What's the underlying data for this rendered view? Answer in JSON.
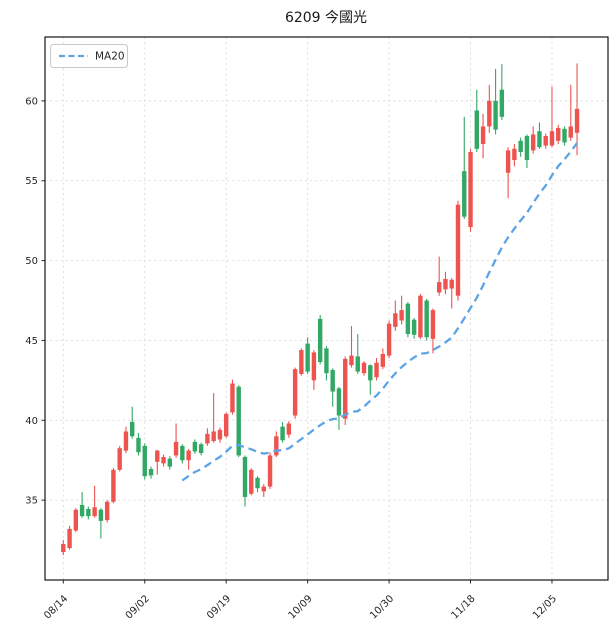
{
  "title": "6209 今國光",
  "legend": {
    "ma20_label": "MA20"
  },
  "colors": {
    "up": "#ef5350",
    "down": "#32a865",
    "ma20": "#5ca4e6",
    "grid": "#d9d9d9",
    "axis": "#000000",
    "text": "#262626",
    "background": "#ffffff"
  },
  "chart_data": {
    "type": "candlestick",
    "title": "6209 今國光",
    "convention": "red=up(close>=open), green=down(close<open)",
    "x_tick_labels": [
      "08/14",
      "09/02",
      "09/19",
      "10/09",
      "10/30",
      "11/18",
      "12/05"
    ],
    "x_tick_indices": [
      0,
      13,
      26,
      39,
      52,
      65,
      78
    ],
    "y_ticks": [
      35,
      40,
      45,
      50,
      55,
      60
    ],
    "ylim": [
      30,
      64
    ],
    "grid": "dotted",
    "legend_position": "upper-left",
    "overlays": [
      {
        "name": "MA20",
        "type": "sma",
        "window": 20,
        "line_style": "dashed"
      }
    ],
    "dates": [
      "08/14",
      "08/15",
      "08/16",
      "08/19",
      "08/20",
      "08/21",
      "08/22",
      "08/23",
      "08/26",
      "08/27",
      "08/28",
      "08/29",
      "08/30",
      "09/02",
      "09/03",
      "09/04",
      "09/05",
      "09/06",
      "09/09",
      "09/10",
      "09/11",
      "09/12",
      "09/13",
      "09/16",
      "09/17",
      "09/18",
      "09/19",
      "09/20",
      "09/23",
      "09/24",
      "09/25",
      "09/26",
      "09/27",
      "09/30",
      "10/01",
      "10/02",
      "10/04",
      "10/07",
      "10/08",
      "10/09",
      "10/11",
      "10/14",
      "10/15",
      "10/16",
      "10/17",
      "10/18",
      "10/21",
      "10/22",
      "10/23",
      "10/24",
      "10/28",
      "10/29",
      "10/30",
      "10/31",
      "11/01",
      "11/04",
      "11/05",
      "11/06",
      "11/07",
      "11/08",
      "11/11",
      "11/12",
      "11/13",
      "11/14",
      "11/15",
      "11/18",
      "11/19",
      "11/20",
      "11/21",
      "11/22",
      "11/25",
      "11/26",
      "11/27",
      "11/28",
      "11/29",
      "12/02",
      "12/03",
      "12/04",
      "12/05",
      "12/06",
      "12/09",
      "12/10",
      "12/11"
    ],
    "ohlc": [
      [
        31.75,
        32.5,
        31.55,
        32.25
      ],
      [
        32.0,
        33.4,
        31.9,
        33.2
      ],
      [
        33.1,
        34.5,
        33.0,
        34.4
      ],
      [
        34.7,
        35.5,
        33.9,
        34.0
      ],
      [
        34.45,
        34.6,
        33.8,
        34.0
      ],
      [
        34.0,
        35.9,
        33.9,
        34.55
      ],
      [
        34.4,
        34.5,
        32.6,
        33.7
      ],
      [
        33.75,
        35.0,
        33.6,
        34.9
      ],
      [
        34.9,
        37.0,
        34.8,
        36.9
      ],
      [
        36.9,
        38.4,
        36.8,
        38.25
      ],
      [
        38.1,
        39.6,
        37.95,
        39.3
      ],
      [
        39.9,
        40.85,
        38.85,
        39.0
      ],
      [
        38.9,
        39.2,
        37.8,
        38.0
      ],
      [
        38.4,
        38.55,
        36.3,
        36.5
      ],
      [
        36.95,
        37.1,
        36.35,
        36.55
      ],
      [
        37.4,
        38.15,
        36.6,
        38.1
      ],
      [
        37.3,
        37.85,
        37.1,
        37.7
      ],
      [
        37.6,
        37.75,
        36.9,
        37.1
      ],
      [
        37.8,
        39.8,
        37.65,
        38.65
      ],
      [
        38.4,
        38.5,
        37.3,
        37.5
      ],
      [
        37.5,
        38.2,
        36.9,
        38.1
      ],
      [
        38.65,
        38.8,
        37.9,
        38.05
      ],
      [
        38.5,
        38.6,
        37.8,
        37.95
      ],
      [
        38.55,
        39.5,
        38.4,
        39.15
      ],
      [
        38.7,
        41.7,
        38.6,
        39.3
      ],
      [
        38.8,
        39.55,
        38.6,
        39.4
      ],
      [
        39.0,
        40.5,
        38.9,
        40.4
      ],
      [
        40.5,
        42.55,
        40.35,
        42.3
      ],
      [
        42.1,
        42.2,
        37.7,
        37.8
      ],
      [
        37.7,
        37.8,
        34.6,
        35.2
      ],
      [
        35.4,
        37.0,
        35.3,
        36.9
      ],
      [
        36.4,
        36.5,
        35.5,
        35.75
      ],
      [
        35.55,
        36.0,
        35.2,
        35.85
      ],
      [
        35.85,
        38.0,
        35.7,
        37.8
      ],
      [
        37.8,
        39.3,
        37.7,
        39.0
      ],
      [
        39.6,
        39.9,
        38.6,
        38.75
      ],
      [
        39.1,
        39.95,
        38.9,
        39.8
      ],
      [
        40.3,
        43.3,
        40.1,
        43.2
      ],
      [
        42.9,
        44.5,
        42.8,
        44.4
      ],
      [
        44.8,
        45.2,
        42.9,
        43.05
      ],
      [
        42.5,
        44.4,
        41.9,
        44.25
      ],
      [
        46.35,
        46.6,
        43.5,
        43.65
      ],
      [
        44.5,
        44.65,
        42.5,
        42.95
      ],
      [
        43.15,
        43.25,
        40.85,
        41.8
      ],
      [
        42.0,
        42.1,
        39.4,
        40.3
      ],
      [
        40.1,
        44.0,
        39.7,
        43.85
      ],
      [
        43.45,
        45.9,
        43.3,
        44.05
      ],
      [
        44.0,
        45.4,
        42.9,
        43.05
      ],
      [
        42.95,
        43.7,
        42.8,
        43.6
      ],
      [
        43.45,
        43.5,
        41.6,
        42.5
      ],
      [
        42.7,
        43.9,
        42.5,
        43.6
      ],
      [
        43.35,
        44.5,
        43.2,
        44.15
      ],
      [
        44.05,
        46.25,
        43.9,
        46.05
      ],
      [
        45.85,
        47.5,
        45.6,
        46.7
      ],
      [
        46.25,
        47.8,
        46.0,
        46.9
      ],
      [
        47.3,
        47.4,
        45.2,
        45.4
      ],
      [
        46.3,
        46.4,
        45.1,
        45.35
      ],
      [
        45.2,
        47.9,
        45.1,
        47.8
      ],
      [
        47.5,
        47.6,
        45.0,
        45.2
      ],
      [
        45.1,
        47.0,
        44.2,
        46.9
      ],
      [
        48.0,
        50.25,
        47.8,
        48.65
      ],
      [
        48.2,
        49.3,
        47.9,
        48.85
      ],
      [
        48.25,
        48.9,
        47.0,
        48.8
      ],
      [
        47.8,
        53.75,
        47.5,
        53.5
      ],
      [
        55.6,
        59.0,
        52.6,
        52.75
      ],
      [
        52.1,
        57.0,
        51.8,
        56.8
      ],
      [
        59.4,
        60.7,
        56.8,
        57.0
      ],
      [
        57.3,
        59.2,
        56.4,
        58.4
      ],
      [
        58.4,
        61.0,
        58.0,
        60.0
      ],
      [
        60.0,
        62.0,
        57.9,
        58.2
      ],
      [
        60.7,
        62.3,
        58.8,
        59.0
      ],
      [
        55.5,
        57.1,
        53.9,
        56.9
      ],
      [
        56.3,
        57.3,
        55.9,
        57.0
      ],
      [
        57.5,
        57.7,
        56.5,
        56.8
      ],
      [
        57.8,
        57.9,
        55.8,
        56.3
      ],
      [
        56.9,
        58.4,
        56.7,
        57.9
      ],
      [
        58.1,
        58.65,
        57.0,
        57.1
      ],
      [
        57.2,
        57.95,
        57.0,
        57.8
      ],
      [
        57.2,
        60.9,
        57.1,
        58.1
      ],
      [
        57.5,
        58.5,
        57.3,
        58.3
      ],
      [
        58.25,
        58.4,
        57.2,
        57.4
      ],
      [
        57.7,
        61.0,
        57.5,
        58.4
      ],
      [
        58.0,
        62.35,
        56.6,
        59.5
      ]
    ]
  }
}
